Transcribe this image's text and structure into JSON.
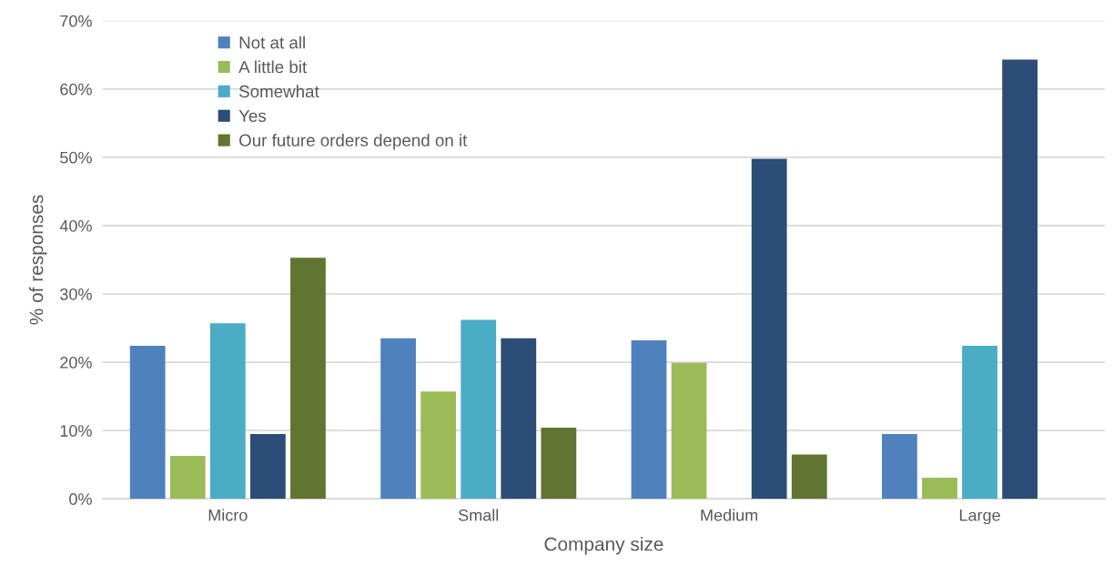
{
  "chart_data": {
    "type": "bar",
    "xlabel": "Company size",
    "ylabel": "% of responses",
    "categories": [
      "Micro",
      "Small",
      "Medium",
      "Large"
    ],
    "series": [
      {
        "name": "Not at all",
        "color": "#4f81bd",
        "values": [
          22.4,
          23.5,
          23.2,
          9.5
        ]
      },
      {
        "name": "A little bit",
        "color": "#9bbb59",
        "values": [
          6.3,
          15.7,
          19.9,
          3.1
        ]
      },
      {
        "name": "Somewhat",
        "color": "#4bacc6",
        "values": [
          25.7,
          26.2,
          0,
          22.4
        ]
      },
      {
        "name": "Yes",
        "color": "#2c4d75",
        "values": [
          9.5,
          23.5,
          49.8,
          64.3
        ]
      },
      {
        "name": "Our future orders depend on it",
        "color": "#617431",
        "values": [
          35.3,
          10.4,
          6.5,
          0
        ]
      }
    ],
    "ylim": [
      0,
      70
    ],
    "yticks": [
      {
        "value": 0,
        "label": "0%"
      },
      {
        "value": 10,
        "label": "10%"
      },
      {
        "value": 20,
        "label": "20%"
      },
      {
        "value": 30,
        "label": "30%"
      },
      {
        "value": 40,
        "label": "40%"
      },
      {
        "value": 50,
        "label": "50%"
      },
      {
        "value": 60,
        "label": "60%"
      },
      {
        "value": 70,
        "label": "70%"
      }
    ],
    "grid": "y",
    "legend": "top left"
  }
}
